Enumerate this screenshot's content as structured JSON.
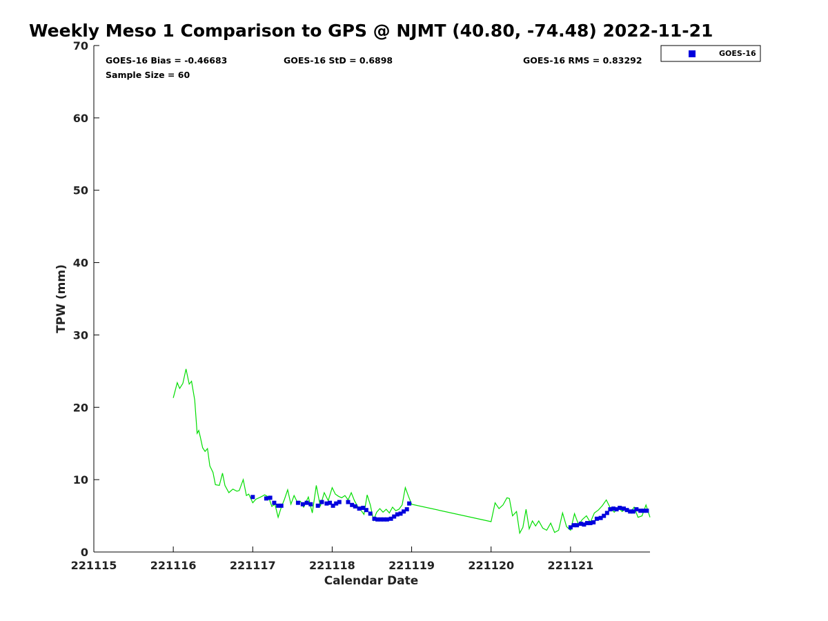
{
  "chart_data": {
    "type": "scatter",
    "title": "Weekly Meso 1 Comparison to GPS @ NJMT (40.80, -74.48) 2022-11-21",
    "xlabel": "Calendar Date",
    "ylabel": "TPW (mm)",
    "xlim": [
      221115,
      221122
    ],
    "ylim": [
      0,
      70
    ],
    "xticks": [
      "221115",
      "221116",
      "221117",
      "221118",
      "221119",
      "221120",
      "221121"
    ],
    "yticks": [
      "0",
      "10",
      "20",
      "30",
      "40",
      "50",
      "60",
      "70"
    ],
    "stats": {
      "bias": "GOES-16 Bias = -0.46683",
      "std": "GOES-16 StD = 0.6898",
      "rms": "GOES-16 RMS = 0.83292",
      "sample": "Sample Size = 60"
    },
    "legend": {
      "position": "top-right",
      "entries": [
        "GOES-16"
      ]
    },
    "series": [
      {
        "name": "GOES-16",
        "kind": "scatter",
        "marker": "square",
        "color": "#0000dd",
        "x": [
          221117.0,
          221117.17,
          221117.22,
          221117.27,
          221117.32,
          221117.36,
          221117.57,
          221117.63,
          221117.68,
          221117.73,
          221117.82,
          221117.87,
          221117.93,
          221117.97,
          221118.01,
          221118.05,
          221118.09,
          221118.2,
          221118.25,
          221118.29,
          221118.34,
          221118.39,
          221118.43,
          221118.48,
          221118.53,
          221118.57,
          221118.61,
          221118.65,
          221118.69,
          221118.74,
          221118.78,
          221118.82,
          221118.86,
          221118.9,
          221118.94,
          221118.97,
          221121.0,
          221121.04,
          221121.08,
          221121.13,
          221121.17,
          221121.21,
          221121.25,
          221121.29,
          221121.33,
          221121.38,
          221121.42,
          221121.46,
          221121.5,
          221121.54,
          221121.58,
          221121.62,
          221121.67,
          221121.71,
          221121.75,
          221121.79,
          221121.83,
          221121.88,
          221121.92,
          221121.96
        ],
        "y": [
          7.6,
          7.4,
          7.5,
          6.8,
          6.4,
          6.4,
          6.8,
          6.6,
          6.8,
          6.6,
          6.4,
          6.9,
          6.7,
          6.8,
          6.4,
          6.7,
          6.9,
          6.9,
          6.5,
          6.3,
          6.0,
          6.1,
          5.8,
          5.3,
          4.6,
          4.5,
          4.5,
          4.5,
          4.5,
          4.6,
          4.9,
          5.2,
          5.3,
          5.6,
          5.9,
          6.7,
          3.4,
          3.7,
          3.7,
          3.9,
          3.8,
          4.0,
          4.0,
          4.1,
          4.6,
          4.7,
          5.0,
          5.4,
          5.9,
          6.0,
          5.9,
          6.1,
          6.0,
          5.8,
          5.6,
          5.6,
          5.9,
          5.7,
          5.7,
          5.7
        ]
      },
      {
        "kind": "line",
        "color": "#00dd00",
        "x": [
          221116.0,
          221116.05,
          221116.08,
          221116.12,
          221116.16,
          221116.2,
          221116.23,
          221116.27,
          221116.3,
          221116.32,
          221116.34,
          221116.37,
          221116.4,
          221116.43,
          221116.46,
          221116.5,
          221116.53,
          221116.58,
          221116.62,
          221116.65,
          221116.7,
          221116.75,
          221116.8,
          221116.83,
          221116.88,
          221116.92,
          221116.95,
          221117.0,
          221117.04,
          221117.1,
          221117.15,
          221117.2,
          221117.24,
          221117.28,
          221117.32,
          221117.36,
          221117.4,
          221117.44,
          221117.48,
          221117.52,
          221117.56,
          221117.6,
          221117.64,
          221117.7,
          221117.75,
          221117.8,
          221117.85,
          221117.9,
          221117.95,
          221118.0,
          221118.04,
          221118.08,
          221118.12,
          221118.16,
          221118.2,
          221118.24,
          221118.28,
          221118.32,
          221118.36,
          221118.4,
          221118.44,
          221118.48,
          221118.52,
          221118.56,
          221118.6,
          221118.64,
          221118.68,
          221118.72,
          221118.76,
          221118.8,
          221118.84,
          221118.88,
          221118.92,
          221118.96,
          221119.0,
          221120.0,
          221120.05,
          221120.1,
          221120.15,
          221120.2,
          221120.23,
          221120.27,
          221120.32,
          221120.36,
          221120.4,
          221120.44,
          221120.48,
          221120.52,
          221120.56,
          221120.6,
          221120.65,
          221120.7,
          221120.75,
          221120.8,
          221120.85,
          221120.9,
          221120.95,
          221121.0,
          221121.05,
          221121.1,
          221121.15,
          221121.2,
          221121.25,
          221121.3,
          221121.35,
          221121.4,
          221121.45,
          221121.5,
          221121.55,
          221121.6,
          221121.65,
          221121.7,
          221121.75,
          221121.8,
          221121.85,
          221121.9,
          221121.95,
          221122.0
        ],
        "y": [
          21.3,
          23.4,
          22.6,
          23.3,
          25.3,
          23.2,
          23.6,
          21.0,
          16.4,
          16.8,
          15.9,
          14.4,
          13.9,
          14.3,
          11.9,
          11.0,
          9.3,
          9.2,
          10.9,
          9.2,
          8.2,
          8.7,
          8.4,
          8.5,
          10.0,
          7.8,
          8.0,
          6.8,
          7.3,
          7.6,
          7.9,
          7.6,
          6.3,
          6.6,
          4.8,
          6.2,
          7.3,
          8.6,
          6.6,
          7.8,
          6.9,
          7.0,
          6.2,
          7.6,
          5.4,
          9.2,
          6.3,
          8.2,
          7.1,
          8.9,
          8.0,
          7.7,
          7.5,
          7.8,
          7.2,
          8.2,
          7.1,
          6.3,
          5.8,
          5.2,
          7.9,
          6.5,
          4.4,
          5.5,
          6.0,
          5.5,
          5.9,
          5.4,
          6.2,
          5.7,
          5.9,
          6.5,
          8.9,
          7.7,
          6.6,
          4.2,
          6.8,
          6.0,
          6.5,
          7.5,
          7.4,
          5.0,
          5.6,
          2.6,
          3.4,
          5.9,
          3.2,
          4.3,
          3.6,
          4.3,
          3.3,
          3.0,
          4.0,
          2.7,
          3.0,
          5.4,
          3.5,
          3.0,
          5.3,
          3.8,
          4.5,
          5.0,
          4.1,
          5.4,
          5.8,
          6.4,
          7.2,
          6.1,
          5.5,
          6.1,
          5.6,
          6.0,
          5.4,
          6.2,
          4.8,
          5.0,
          6.5,
          4.8
        ]
      }
    ]
  }
}
